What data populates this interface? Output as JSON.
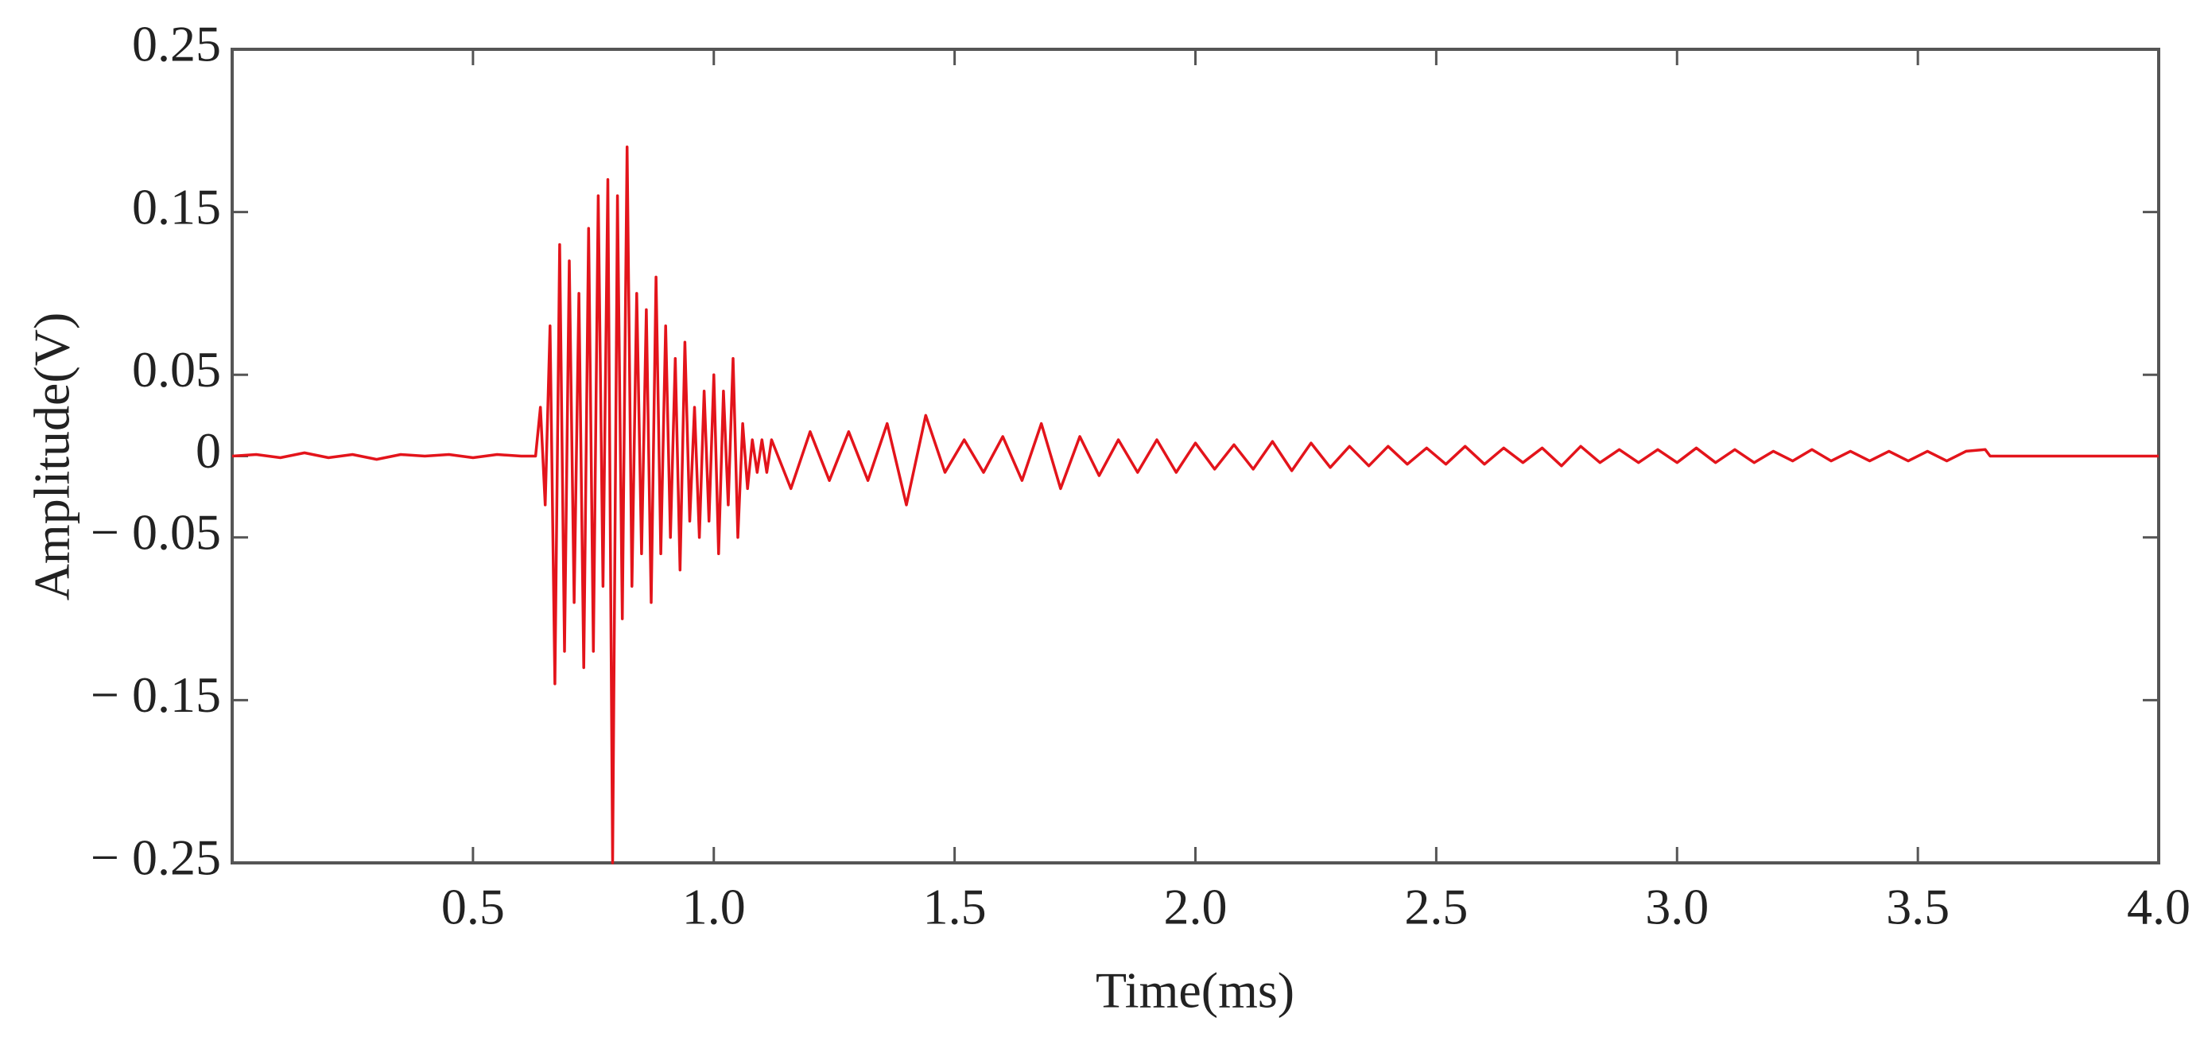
{
  "chart_data": {
    "type": "line",
    "x_label": "Time(ms)",
    "y_label": "Amplitude(V)",
    "color": "#e3141b",
    "xlim": [
      0,
      4
    ],
    "ylim": [
      -0.25,
      0.25
    ],
    "xticks": [
      0.5,
      {
        "value": 1,
        "label": "1.0"
      },
      1.5,
      {
        "value": 2,
        "label": "2.0"
      },
      2.5,
      {
        "value": 3,
        "label": "3.0"
      },
      3.5,
      {
        "value": 4,
        "label": "4.0"
      }
    ],
    "yticks": [
      0.25,
      0.15,
      0.05,
      0,
      {
        "value": -0.05,
        "label": "− 0.05"
      },
      {
        "value": -0.15,
        "label": "− 0.15"
      },
      {
        "value": -0.25,
        "label": "− 0.25"
      }
    ],
    "x": [
      0,
      0.05,
      0.1,
      0.15,
      0.2,
      0.25,
      0.3,
      0.35,
      0.4,
      0.45,
      0.5,
      0.55,
      0.6,
      0.63,
      0.64,
      0.65,
      0.66,
      0.67,
      0.68,
      0.69,
      0.7,
      0.71,
      0.72,
      0.73,
      0.74,
      0.75,
      0.76,
      0.77,
      0.78,
      0.79,
      0.8,
      0.81,
      0.82,
      0.83,
      0.84,
      0.85,
      0.86,
      0.87,
      0.88,
      0.89,
      0.9,
      0.91,
      0.92,
      0.93,
      0.94,
      0.95,
      0.96,
      0.97,
      0.98,
      0.99,
      1,
      1.01,
      1.02,
      1.03,
      1.04,
      1.05,
      1.06,
      1.07,
      1.08,
      1.09,
      1.1,
      1.11,
      1.12,
      1.16,
      1.2,
      1.24,
      1.28,
      1.32,
      1.36,
      1.4,
      1.44,
      1.48,
      1.52,
      1.56,
      1.6,
      1.64,
      1.68,
      1.72,
      1.76,
      1.8,
      1.84,
      1.88,
      1.92,
      1.96,
      2,
      2.04,
      2.08,
      2.12,
      2.16,
      2.2,
      2.24,
      2.28,
      2.32,
      2.36,
      2.4,
      2.44,
      2.48,
      2.52,
      2.56,
      2.6,
      2.64,
      2.68,
      2.72,
      2.76,
      2.8,
      2.84,
      2.88,
      2.92,
      2.96,
      3,
      3.04,
      3.08,
      3.12,
      3.16,
      3.2,
      3.24,
      3.28,
      3.32,
      3.36,
      3.4,
      3.44,
      3.48,
      3.52,
      3.56,
      3.6,
      3.64,
      3.65,
      4
    ],
    "values": [
      0,
      0.001,
      -0.001,
      0.002,
      -0.001,
      0.001,
      -0.002,
      0.001,
      0,
      0.001,
      -0.001,
      0.001,
      0,
      0,
      0.03,
      -0.03,
      0.08,
      -0.14,
      0.13,
      -0.12,
      0.12,
      -0.09,
      0.1,
      -0.13,
      0.14,
      -0.12,
      0.16,
      -0.08,
      0.17,
      -0.25,
      0.16,
      -0.1,
      0.19,
      -0.08,
      0.1,
      -0.06,
      0.09,
      -0.09,
      0.11,
      -0.06,
      0.08,
      -0.05,
      0.06,
      -0.07,
      0.07,
      -0.04,
      0.03,
      -0.05,
      0.04,
      -0.04,
      0.05,
      -0.06,
      0.04,
      -0.03,
      0.06,
      -0.05,
      0.02,
      -0.02,
      0.01,
      -0.01,
      0.01,
      -0.01,
      0.01,
      -0.02,
      0.015,
      -0.015,
      0.015,
      -0.015,
      0.02,
      -0.03,
      0.025,
      -0.01,
      0.01,
      -0.01,
      0.012,
      -0.015,
      0.02,
      -0.02,
      0.012,
      -0.012,
      0.01,
      -0.01,
      0.01,
      -0.01,
      0.008,
      -0.008,
      0.007,
      -0.008,
      0.009,
      -0.009,
      0.008,
      -0.007,
      0.006,
      -0.006,
      0.006,
      -0.005,
      0.005,
      -0.005,
      0.006,
      -0.005,
      0.005,
      -0.004,
      0.005,
      -0.006,
      0.006,
      -0.004,
      0.004,
      -0.004,
      0.004,
      -0.004,
      0.005,
      -0.004,
      0.004,
      -0.004,
      0.003,
      -0.003,
      0.004,
      -0.003,
      0.003,
      -0.003,
      0.003,
      -0.003,
      0.003,
      -0.003,
      0.003,
      0.004,
      0,
      0
    ]
  }
}
